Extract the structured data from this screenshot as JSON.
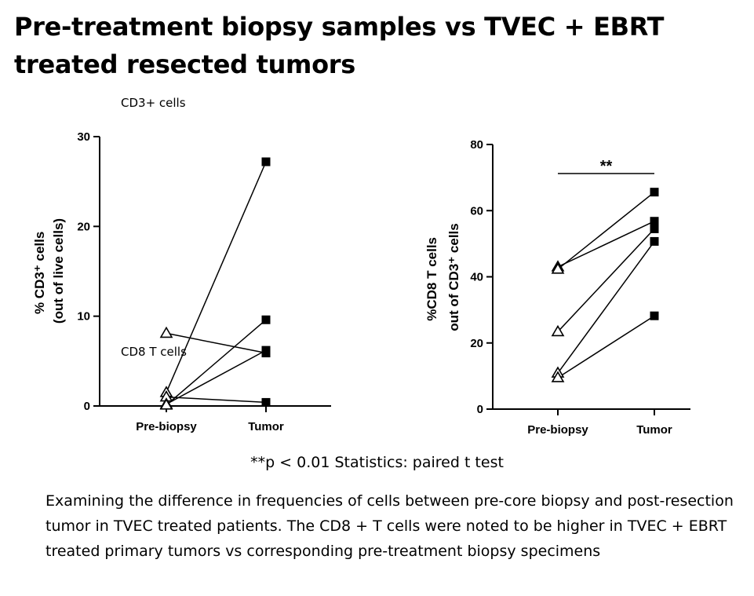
{
  "page": {
    "title": "Pre-treatment biopsy samples vs TVEC + EBRT treated resected tumors",
    "label_cd3": "CD3+ cells",
    "label_cd8": "CD8 T cells",
    "stats_note": "**p < 0.01 Statistics: paired t test",
    "caption": "Examining the difference in frequencies of cells between pre-core biopsy and post-resection tumor in TVEC treated patients. The CD8 + T cells were noted to be higher in TVEC + EBRT treated primary tumors vs corresponding pre-treatment biopsy specimens"
  },
  "chart_data": [
    {
      "type": "scatter",
      "subtype": "paired-line",
      "categories": [
        "Pre-biopsy",
        "Tumor"
      ],
      "ylabel_line1": "% CD3⁺ cells",
      "ylabel_line2": "(out of live cells)",
      "ylim": [
        0,
        30
      ],
      "yticks": [
        0,
        10,
        20,
        30
      ],
      "markers": {
        "Pre-biopsy": "open-triangle",
        "Tumor": "filled-square"
      },
      "pairs": [
        {
          "pre": 1.5,
          "post": 27.2
        },
        {
          "pre": 8.1,
          "post": 5.9
        },
        {
          "pre": 1.0,
          "post": 0.4
        },
        {
          "pre": 0.2,
          "post": 6.2
        },
        {
          "pre": 0.1,
          "post": 9.6
        }
      ],
      "annotation": ""
    },
    {
      "type": "scatter",
      "subtype": "paired-line",
      "categories": [
        "Pre-biopsy",
        "Tumor"
      ],
      "ylabel_line1": "%CD8 T cells",
      "ylabel_line2": "out of CD3⁺ cells",
      "ylim": [
        0,
        80
      ],
      "yticks": [
        0,
        20,
        40,
        60,
        80
      ],
      "markers": {
        "Pre-biopsy": "open-triangle",
        "Tumor": "filled-square"
      },
      "pairs": [
        {
          "pre": 43.0,
          "post": 56.8
        },
        {
          "pre": 42.3,
          "post": 65.6
        },
        {
          "pre": 23.4,
          "post": 54.5
        },
        {
          "pre": 10.9,
          "post": 50.7
        },
        {
          "pre": 9.5,
          "post": 28.2
        }
      ],
      "annotation": "**"
    }
  ]
}
